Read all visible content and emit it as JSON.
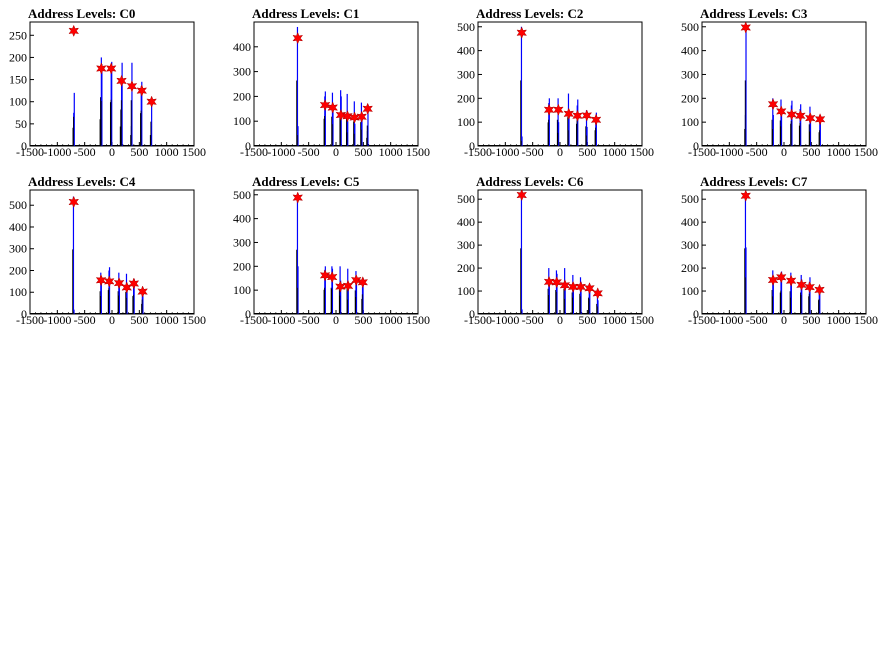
{
  "colors": {
    "histogram": "#0000ff",
    "baseline": "#000000",
    "marker": "#ff0000"
  },
  "icons": {
    "peak_marker": "red-star-marker"
  },
  "chart_data": [
    {
      "type": "histogram",
      "title": "Address Levels: C0",
      "xlim": [
        -1500,
        1500
      ],
      "ylim": [
        0,
        280
      ],
      "xticks": [
        -1500,
        -1000,
        -500,
        0,
        500,
        1000,
        1500
      ],
      "yticks": [
        0,
        50,
        100,
        150,
        200,
        250
      ],
      "bars": [
        {
          "x": -700,
          "y": 75
        },
        {
          "x": -690,
          "y": 120
        },
        {
          "x": -205,
          "y": 110
        },
        {
          "x": -195,
          "y": 200
        },
        {
          "x": -185,
          "y": 185
        },
        {
          "x": -15,
          "y": 180
        },
        {
          "x": -5,
          "y": 190
        },
        {
          "x": 165,
          "y": 80
        },
        {
          "x": 175,
          "y": 150
        },
        {
          "x": 185,
          "y": 188
        },
        {
          "x": 355,
          "y": 45
        },
        {
          "x": 365,
          "y": 188
        },
        {
          "x": 535,
          "y": 135
        },
        {
          "x": 545,
          "y": 145
        },
        {
          "x": 715,
          "y": 45
        },
        {
          "x": 725,
          "y": 100
        }
      ],
      "peaks": [
        {
          "x": -700,
          "y": 260
        },
        {
          "x": -195,
          "y": 175
        },
        {
          "x": -15,
          "y": 175
        },
        {
          "x": 175,
          "y": 147
        },
        {
          "x": 365,
          "y": 135
        },
        {
          "x": 545,
          "y": 125
        },
        {
          "x": 725,
          "y": 100
        }
      ]
    },
    {
      "type": "histogram",
      "title": "Address Levels: C1",
      "xlim": [
        -1500,
        1500
      ],
      "ylim": [
        0,
        500
      ],
      "xticks": [
        -1500,
        -1000,
        -500,
        0,
        500,
        1000,
        1500
      ],
      "yticks": [
        0,
        100,
        200,
        300,
        400
      ],
      "bars": [
        {
          "x": -705,
          "y": 480
        },
        {
          "x": -695,
          "y": 80
        },
        {
          "x": -205,
          "y": 200
        },
        {
          "x": -195,
          "y": 220
        },
        {
          "x": -65,
          "y": 215
        },
        {
          "x": -55,
          "y": 160
        },
        {
          "x": 85,
          "y": 225
        },
        {
          "x": 95,
          "y": 200
        },
        {
          "x": 205,
          "y": 210
        },
        {
          "x": 215,
          "y": 100
        },
        {
          "x": 335,
          "y": 180
        },
        {
          "x": 345,
          "y": 90
        },
        {
          "x": 465,
          "y": 175
        },
        {
          "x": 475,
          "y": 120
        },
        {
          "x": 575,
          "y": 60
        },
        {
          "x": 585,
          "y": 150
        }
      ],
      "peaks": [
        {
          "x": -700,
          "y": 435
        },
        {
          "x": -200,
          "y": 165
        },
        {
          "x": -60,
          "y": 155
        },
        {
          "x": 90,
          "y": 125
        },
        {
          "x": 210,
          "y": 120
        },
        {
          "x": 340,
          "y": 115
        },
        {
          "x": 470,
          "y": 118
        },
        {
          "x": 580,
          "y": 150
        }
      ]
    },
    {
      "type": "histogram",
      "title": "Address Levels: C2",
      "xlim": [
        -1500,
        1500
      ],
      "ylim": [
        0,
        520
      ],
      "xticks": [
        -1500,
        -1000,
        -500,
        0,
        500,
        1000,
        1500
      ],
      "yticks": [
        0,
        100,
        200,
        300,
        400,
        500
      ],
      "bars": [
        {
          "x": -705,
          "y": 500
        },
        {
          "x": -695,
          "y": 40
        },
        {
          "x": -205,
          "y": 180
        },
        {
          "x": -195,
          "y": 200
        },
        {
          "x": -35,
          "y": 200
        },
        {
          "x": -25,
          "y": 100
        },
        {
          "x": 155,
          "y": 220
        },
        {
          "x": 165,
          "y": 120
        },
        {
          "x": 315,
          "y": 170
        },
        {
          "x": 325,
          "y": 195
        },
        {
          "x": 485,
          "y": 150
        },
        {
          "x": 495,
          "y": 80
        },
        {
          "x": 655,
          "y": 120
        },
        {
          "x": 665,
          "y": 140
        }
      ],
      "peaks": [
        {
          "x": -700,
          "y": 475
        },
        {
          "x": -200,
          "y": 152
        },
        {
          "x": -30,
          "y": 152
        },
        {
          "x": 160,
          "y": 135
        },
        {
          "x": 320,
          "y": 127
        },
        {
          "x": 490,
          "y": 128
        },
        {
          "x": 660,
          "y": 110
        }
      ]
    },
    {
      "type": "histogram",
      "title": "Address Levels: C3",
      "xlim": [
        -1500,
        1500
      ],
      "ylim": [
        0,
        520
      ],
      "xticks": [
        -1500,
        -1000,
        -500,
        0,
        500,
        1000,
        1500
      ],
      "yticks": [
        0,
        100,
        200,
        300,
        400,
        500
      ],
      "bars": [
        {
          "x": -705,
          "y": 130
        },
        {
          "x": -695,
          "y": 500
        },
        {
          "x": -205,
          "y": 200
        },
        {
          "x": -195,
          "y": 130
        },
        {
          "x": -55,
          "y": 195
        },
        {
          "x": -45,
          "y": 150
        },
        {
          "x": 135,
          "y": 170
        },
        {
          "x": 145,
          "y": 190
        },
        {
          "x": 295,
          "y": 155
        },
        {
          "x": 305,
          "y": 175
        },
        {
          "x": 475,
          "y": 165
        },
        {
          "x": 485,
          "y": 110
        },
        {
          "x": 655,
          "y": 105
        },
        {
          "x": 665,
          "y": 120
        }
      ],
      "peaks": [
        {
          "x": -700,
          "y": 497
        },
        {
          "x": -200,
          "y": 175
        },
        {
          "x": -50,
          "y": 145
        },
        {
          "x": 140,
          "y": 132
        },
        {
          "x": 300,
          "y": 127
        },
        {
          "x": 480,
          "y": 117
        },
        {
          "x": 660,
          "y": 112
        }
      ]
    },
    {
      "type": "histogram",
      "title": "Address Levels: C4",
      "xlim": [
        -1500,
        1500
      ],
      "ylim": [
        0,
        570
      ],
      "xticks": [
        -1500,
        -1000,
        -500,
        0,
        500,
        1000,
        1500
      ],
      "yticks": [
        0,
        100,
        200,
        300,
        400,
        500
      ],
      "bars": [
        {
          "x": -705,
          "y": 540
        },
        {
          "x": -695,
          "y": 20
        },
        {
          "x": -205,
          "y": 190
        },
        {
          "x": -195,
          "y": 150
        },
        {
          "x": -55,
          "y": 200
        },
        {
          "x": -45,
          "y": 215
        },
        {
          "x": 125,
          "y": 190
        },
        {
          "x": 135,
          "y": 155
        },
        {
          "x": 265,
          "y": 185
        },
        {
          "x": 275,
          "y": 135
        },
        {
          "x": 395,
          "y": 150
        },
        {
          "x": 405,
          "y": 160
        },
        {
          "x": 555,
          "y": 85
        },
        {
          "x": 565,
          "y": 120
        }
      ],
      "peaks": [
        {
          "x": -700,
          "y": 515
        },
        {
          "x": -200,
          "y": 155
        },
        {
          "x": -50,
          "y": 150
        },
        {
          "x": 130,
          "y": 142
        },
        {
          "x": 270,
          "y": 122
        },
        {
          "x": 400,
          "y": 140
        },
        {
          "x": 560,
          "y": 103
        }
      ]
    },
    {
      "type": "histogram",
      "title": "Address Levels: C5",
      "xlim": [
        -1500,
        1500
      ],
      "ylim": [
        0,
        520
      ],
      "xticks": [
        -1500,
        -1000,
        -500,
        0,
        500,
        1000,
        1500
      ],
      "yticks": [
        0,
        100,
        200,
        300,
        400,
        500
      ],
      "bars": [
        {
          "x": -705,
          "y": 490
        },
        {
          "x": -695,
          "y": 200
        },
        {
          "x": -205,
          "y": 185
        },
        {
          "x": -195,
          "y": 200
        },
        {
          "x": -75,
          "y": 200
        },
        {
          "x": -65,
          "y": 190
        },
        {
          "x": 75,
          "y": 200
        },
        {
          "x": 85,
          "y": 140
        },
        {
          "x": 215,
          "y": 190
        },
        {
          "x": 225,
          "y": 110
        },
        {
          "x": 365,
          "y": 180
        },
        {
          "x": 375,
          "y": 130
        },
        {
          "x": 485,
          "y": 115
        },
        {
          "x": 495,
          "y": 150
        }
      ],
      "peaks": [
        {
          "x": -700,
          "y": 488
        },
        {
          "x": -200,
          "y": 162
        },
        {
          "x": -70,
          "y": 155
        },
        {
          "x": 80,
          "y": 115
        },
        {
          "x": 220,
          "y": 118
        },
        {
          "x": 370,
          "y": 142
        },
        {
          "x": 490,
          "y": 133
        }
      ]
    },
    {
      "type": "histogram",
      "title": "Address Levels: C6",
      "xlim": [
        -1500,
        1500
      ],
      "ylim": [
        0,
        540
      ],
      "xticks": [
        -1500,
        -1000,
        -500,
        0,
        500,
        1000,
        1500
      ],
      "yticks": [
        0,
        100,
        200,
        300,
        400,
        500
      ],
      "bars": [
        {
          "x": -705,
          "y": 520
        },
        {
          "x": -695,
          "y": 20
        },
        {
          "x": -205,
          "y": 200
        },
        {
          "x": -195,
          "y": 150
        },
        {
          "x": -65,
          "y": 190
        },
        {
          "x": -55,
          "y": 175
        },
        {
          "x": 85,
          "y": 200
        },
        {
          "x": 95,
          "y": 120
        },
        {
          "x": 235,
          "y": 170
        },
        {
          "x": 245,
          "y": 130
        },
        {
          "x": 375,
          "y": 160
        },
        {
          "x": 385,
          "y": 140
        },
        {
          "x": 535,
          "y": 130
        },
        {
          "x": 545,
          "y": 120
        },
        {
          "x": 685,
          "y": 80
        },
        {
          "x": 695,
          "y": 60
        }
      ],
      "peaks": [
        {
          "x": -700,
          "y": 518
        },
        {
          "x": -200,
          "y": 140
        },
        {
          "x": -60,
          "y": 138
        },
        {
          "x": 90,
          "y": 125
        },
        {
          "x": 240,
          "y": 118
        },
        {
          "x": 380,
          "y": 118
        },
        {
          "x": 540,
          "y": 112
        },
        {
          "x": 690,
          "y": 90
        }
      ]
    },
    {
      "type": "histogram",
      "title": "Address Levels: C7",
      "xlim": [
        -1500,
        1500
      ],
      "ylim": [
        0,
        540
      ],
      "xticks": [
        -1500,
        -1000,
        -500,
        0,
        500,
        1000,
        1500
      ],
      "yticks": [
        0,
        100,
        200,
        300,
        400,
        500
      ],
      "bars": [
        {
          "x": -705,
          "y": 520
        },
        {
          "x": -695,
          "y": 290
        },
        {
          "x": -205,
          "y": 190
        },
        {
          "x": -195,
          "y": 140
        },
        {
          "x": -55,
          "y": 170
        },
        {
          "x": -45,
          "y": 185
        },
        {
          "x": 125,
          "y": 180
        },
        {
          "x": 135,
          "y": 130
        },
        {
          "x": 315,
          "y": 170
        },
        {
          "x": 325,
          "y": 150
        },
        {
          "x": 465,
          "y": 140
        },
        {
          "x": 475,
          "y": 160
        },
        {
          "x": 645,
          "y": 110
        },
        {
          "x": 655,
          "y": 120
        }
      ],
      "peaks": [
        {
          "x": -700,
          "y": 515
        },
        {
          "x": -200,
          "y": 148
        },
        {
          "x": -50,
          "y": 160
        },
        {
          "x": 130,
          "y": 145
        },
        {
          "x": 320,
          "y": 127
        },
        {
          "x": 470,
          "y": 117
        },
        {
          "x": 650,
          "y": 105
        }
      ]
    }
  ]
}
